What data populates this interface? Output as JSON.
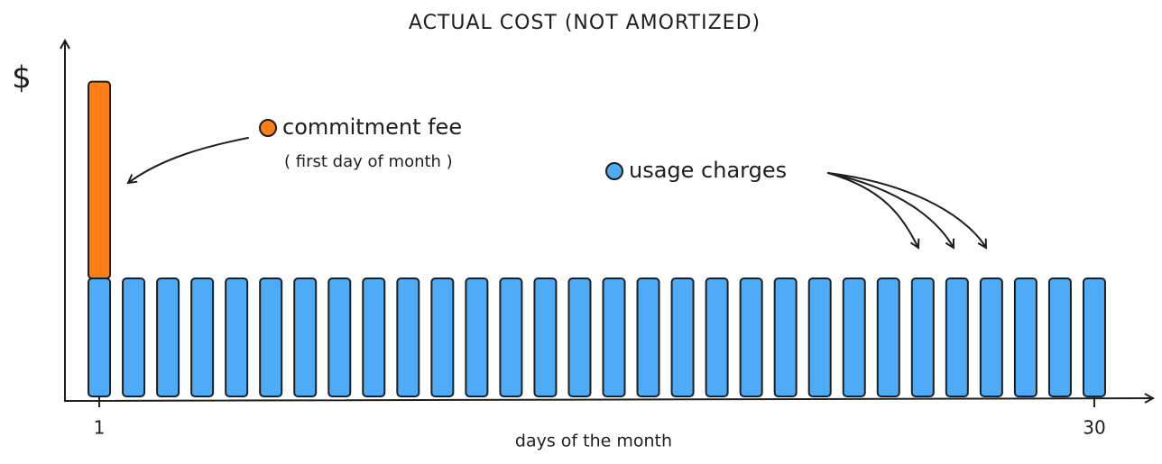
{
  "chart_data": {
    "type": "bar",
    "title": "ACTUAL COST (NOT AMORTIZED)",
    "y_label": "$",
    "x_label": "days of the month",
    "annotation": "( first day of month )",
    "x": [
      1,
      2,
      3,
      4,
      5,
      6,
      7,
      8,
      9,
      10,
      11,
      12,
      13,
      14,
      15,
      16,
      17,
      18,
      19,
      20,
      21,
      22,
      23,
      24,
      25,
      26,
      27,
      28,
      29,
      30
    ],
    "xlim": [
      0,
      31.5
    ],
    "xticks": [
      1,
      30
    ],
    "ylim": [
      0,
      9
    ],
    "stacked": true,
    "series": [
      {
        "name": "usage charges",
        "color": "#4dabf7",
        "values": [
          3,
          3,
          3,
          3,
          3,
          3,
          3,
          3,
          3,
          3,
          3,
          3,
          3,
          3,
          3,
          3,
          3,
          3,
          3,
          3,
          3,
          3,
          3,
          3,
          3,
          3,
          3,
          3,
          3,
          3
        ]
      },
      {
        "name": "commitment fee",
        "color": "#fd7e14",
        "values": [
          5,
          null,
          null,
          null,
          null,
          null,
          null,
          null,
          null,
          null,
          null,
          null,
          null,
          null,
          null,
          null,
          null,
          null,
          null,
          null,
          null,
          null,
          null,
          null,
          null,
          null,
          null,
          null,
          null,
          null
        ]
      }
    ]
  }
}
